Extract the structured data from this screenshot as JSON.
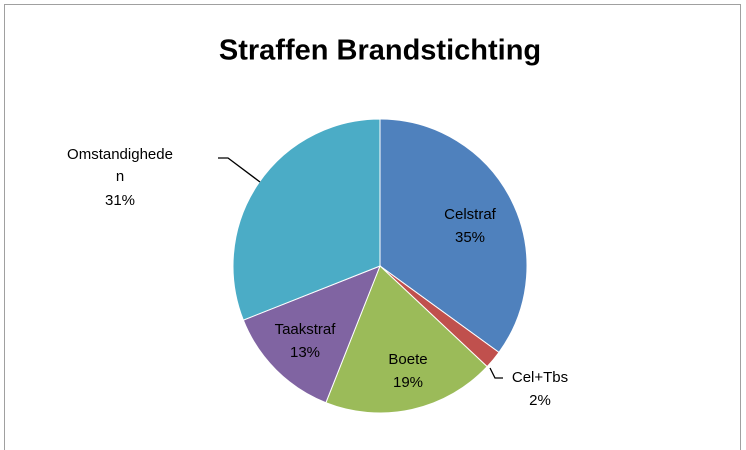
{
  "chart_data": {
    "type": "pie",
    "title": "Straffen Brandstichting",
    "categories": [
      "Celstraf",
      "Cel+Tbs",
      "Boete",
      "Taakstraf",
      "Omstandigheden"
    ],
    "values": [
      35,
      2,
      19,
      13,
      31
    ],
    "value_labels": [
      "35%",
      "2%",
      "19%",
      "13%",
      "31%"
    ],
    "colors": [
      "#4f81bd",
      "#c0504d",
      "#9bbb59",
      "#8064a2",
      "#4bacc6"
    ]
  }
}
